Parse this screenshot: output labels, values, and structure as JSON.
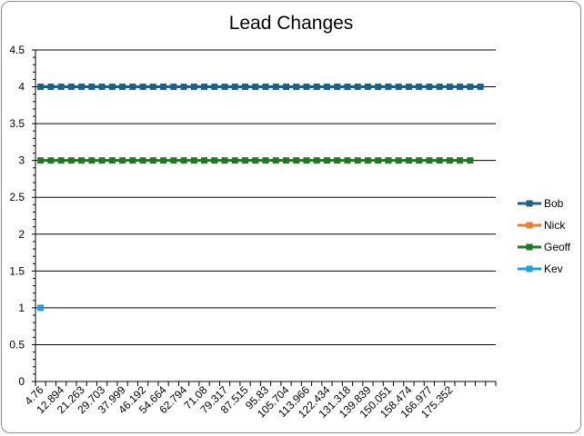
{
  "chart_data": {
    "type": "line",
    "title": "Lead Changes",
    "xlabel": "",
    "ylabel": "",
    "ylim": [
      0,
      4.5
    ],
    "y_ticks": [
      "0",
      "0.5",
      "1",
      "1.5",
      "2",
      "2.5",
      "3",
      "3.5",
      "4",
      "4.5"
    ],
    "grid": true,
    "legend_position": "right",
    "x_ticks_shown": [
      "4.76",
      "12.894",
      "21.263",
      "29.703",
      "37.999",
      "46.192",
      "54.664",
      "62.794",
      "71.08",
      "79.317",
      "87.515",
      "95.83",
      "105.704",
      "113.966",
      "122.434",
      "131.318",
      "139.839",
      "150.051",
      "158.474",
      "166.977",
      "175.352"
    ],
    "series": [
      {
        "name": "Bob",
        "color": "#1f5f86",
        "values": [
          4,
          4,
          4,
          4,
          4,
          4,
          4,
          4,
          4,
          4,
          4,
          4,
          4,
          4,
          4,
          4,
          4,
          4,
          4,
          4,
          4,
          4,
          4,
          4,
          4,
          4,
          4,
          4,
          4,
          4,
          4,
          4,
          4,
          4,
          4,
          4,
          4,
          4,
          4,
          4,
          4,
          4,
          4,
          4
        ]
      },
      {
        "name": "Nick",
        "color": "#ed7d31",
        "values": []
      },
      {
        "name": "Geoff",
        "color": "#1e7a1e",
        "values": [
          3,
          3,
          3,
          3,
          3,
          3,
          3,
          3,
          3,
          3,
          3,
          3,
          3,
          3,
          3,
          3,
          3,
          3,
          3,
          3,
          3,
          3,
          3,
          3,
          3,
          3,
          3,
          3,
          3,
          3,
          3,
          3,
          3,
          3,
          3,
          3,
          3,
          3,
          3,
          3,
          3,
          3,
          3
        ]
      },
      {
        "name": "Kev",
        "color": "#1ba1e2",
        "values": [
          1
        ]
      }
    ]
  }
}
